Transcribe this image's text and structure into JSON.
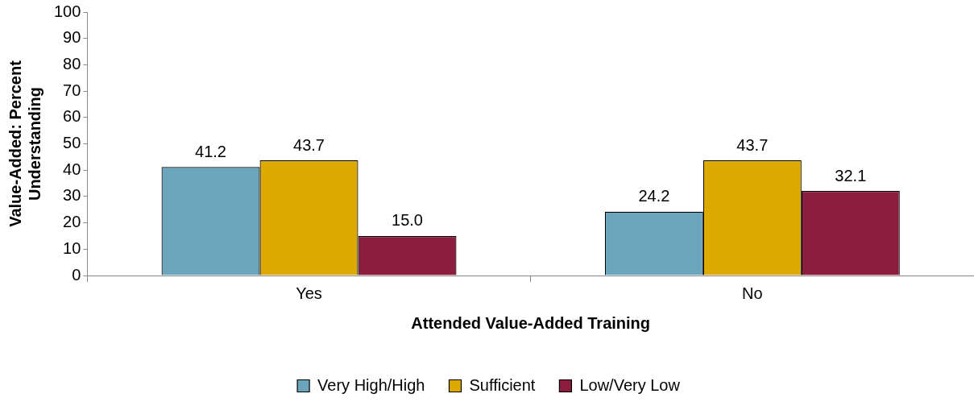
{
  "chart_data": {
    "type": "bar",
    "xlabel": "Attended Value-Added Training",
    "ylabel": "Value-Added: Percent Understanding",
    "categories": [
      "Yes",
      "No"
    ],
    "series": [
      {
        "name": "Very High/High",
        "color": "#6aa5bb",
        "values": [
          41.2,
          24.2
        ],
        "value_labels": [
          "41.2",
          "24.2"
        ]
      },
      {
        "name": "Sufficient",
        "color": "#dcaa00",
        "values": [
          43.7,
          43.7
        ],
        "value_labels": [
          "43.7",
          "43.7"
        ]
      },
      {
        "name": "Low/Very Low",
        "color": "#8b1e3f",
        "values": [
          15.0,
          32.1
        ],
        "value_labels": [
          "15.0",
          "32.1"
        ]
      }
    ],
    "ylim": [
      0,
      100
    ],
    "yticks": [
      0,
      10,
      20,
      30,
      40,
      50,
      60,
      70,
      80,
      90,
      100
    ],
    "grid": false,
    "legend": "bottom"
  }
}
